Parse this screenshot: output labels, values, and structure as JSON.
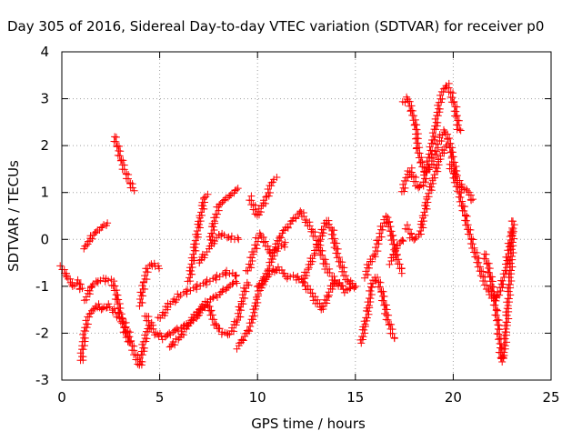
{
  "chart_data": {
    "type": "scatter",
    "title": "Day 305 of 2016, Sidereal Day-to-day VTEC variation (SDTVAR) for receiver p0",
    "xlabel": "GPS time / hours",
    "ylabel": "SDTVAR / TECUs",
    "xlim": [
      0,
      25
    ],
    "ylim": [
      -3,
      4
    ],
    "x_ticks": [
      "0",
      "5",
      "10",
      "15",
      "20",
      "25"
    ],
    "y_ticks": [
      "-3",
      "-2",
      "-1",
      "0",
      "1",
      "2",
      "3",
      "4"
    ],
    "grid": true,
    "marker": "+",
    "marker_color": "#ff0000",
    "tracks": [
      {
        "points": [
          [
            0.0,
            -0.6
          ],
          [
            0.3,
            -0.8
          ],
          [
            0.6,
            -1.0
          ],
          [
            0.9,
            -0.9
          ],
          [
            1.0,
            -1.1
          ]
        ]
      },
      {
        "points": [
          [
            1.0,
            -2.6
          ],
          [
            1.1,
            -2.2
          ],
          [
            1.2,
            -1.9
          ],
          [
            1.4,
            -1.6
          ],
          [
            1.6,
            -1.5
          ],
          [
            1.8,
            -1.4
          ],
          [
            2.0,
            -1.5
          ],
          [
            2.3,
            -1.4
          ],
          [
            2.6,
            -1.5
          ],
          [
            2.8,
            -1.6
          ],
          [
            3.0,
            -1.7
          ],
          [
            3.2,
            -1.8
          ],
          [
            3.4,
            -2.0
          ],
          [
            3.6,
            -2.3
          ],
          [
            3.8,
            -2.5
          ],
          [
            4.0,
            -2.7
          ],
          [
            4.2,
            -2.2
          ],
          [
            4.5,
            -1.8
          ]
        ]
      },
      {
        "points": [
          [
            1.2,
            -1.3
          ],
          [
            1.5,
            -1.0
          ],
          [
            1.8,
            -0.9
          ],
          [
            2.2,
            -0.85
          ],
          [
            2.6,
            -0.9
          ],
          [
            2.8,
            -1.2
          ],
          [
            3.0,
            -1.6
          ],
          [
            3.2,
            -1.9
          ],
          [
            3.4,
            -2.2
          ]
        ]
      },
      {
        "points": [
          [
            1.1,
            -0.2
          ],
          [
            1.3,
            -0.1
          ],
          [
            1.6,
            0.1
          ],
          [
            1.9,
            0.2
          ],
          [
            2.3,
            0.35
          ]
        ]
      },
      {
        "points": [
          [
            2.7,
            2.2
          ],
          [
            2.9,
            1.9
          ],
          [
            3.1,
            1.6
          ],
          [
            3.3,
            1.4
          ],
          [
            3.5,
            1.2
          ],
          [
            3.7,
            1.05
          ]
        ]
      },
      {
        "points": [
          [
            4.0,
            -1.4
          ],
          [
            4.2,
            -0.9
          ],
          [
            4.4,
            -0.6
          ],
          [
            4.6,
            -0.5
          ],
          [
            4.8,
            -0.55
          ],
          [
            5.0,
            -0.6
          ]
        ]
      },
      {
        "points": [
          [
            4.3,
            -1.6
          ],
          [
            4.5,
            -1.8
          ],
          [
            4.8,
            -2.0
          ],
          [
            5.2,
            -2.1
          ],
          [
            5.6,
            -2.0
          ],
          [
            6.0,
            -1.9
          ],
          [
            6.5,
            -1.8
          ],
          [
            7.0,
            -1.6
          ],
          [
            7.5,
            -1.3
          ],
          [
            8.0,
            -1.2
          ],
          [
            8.5,
            -1.0
          ],
          [
            9.0,
            -0.9
          ]
        ]
      },
      {
        "points": [
          [
            5.0,
            -1.7
          ],
          [
            5.5,
            -1.4
          ],
          [
            6.0,
            -1.2
          ],
          [
            6.5,
            -1.1
          ],
          [
            7.0,
            -1.0
          ],
          [
            7.5,
            -0.9
          ],
          [
            8.0,
            -0.8
          ],
          [
            8.5,
            -0.7
          ],
          [
            9.0,
            -0.8
          ]
        ]
      },
      {
        "points": [
          [
            5.5,
            -2.3
          ],
          [
            6.0,
            -2.1
          ],
          [
            6.5,
            -1.8
          ],
          [
            7.0,
            -1.5
          ],
          [
            7.5,
            -1.3
          ]
        ]
      },
      {
        "points": [
          [
            6.5,
            -0.9
          ],
          [
            6.7,
            -0.4
          ],
          [
            6.9,
            0.1
          ],
          [
            7.1,
            0.5
          ],
          [
            7.3,
            0.9
          ],
          [
            7.4,
            0.95
          ]
        ]
      },
      {
        "points": [
          [
            7.0,
            -0.5
          ],
          [
            7.5,
            -0.2
          ],
          [
            8.0,
            0.1
          ],
          [
            8.5,
            0.05
          ],
          [
            8.8,
            0.0
          ],
          [
            9.0,
            0.0
          ]
        ]
      },
      {
        "points": [
          [
            7.6,
            0.0
          ],
          [
            7.8,
            0.4
          ],
          [
            8.0,
            0.7
          ],
          [
            8.2,
            0.8
          ],
          [
            8.5,
            0.9
          ],
          [
            8.8,
            1.0
          ],
          [
            9.0,
            1.1
          ]
        ]
      },
      {
        "points": [
          [
            7.5,
            -1.4
          ],
          [
            7.8,
            -1.8
          ],
          [
            8.2,
            -2.0
          ],
          [
            8.6,
            -2.0
          ],
          [
            9.0,
            -1.7
          ],
          [
            9.2,
            -1.3
          ],
          [
            9.5,
            -0.9
          ]
        ]
      },
      {
        "points": [
          [
            9.0,
            -2.3
          ],
          [
            9.3,
            -2.1
          ],
          [
            9.6,
            -1.9
          ],
          [
            9.8,
            -1.6
          ],
          [
            10.0,
            -1.2
          ],
          [
            10.3,
            -0.9
          ],
          [
            10.6,
            -0.6
          ],
          [
            10.9,
            -0.2
          ],
          [
            11.2,
            0.1
          ],
          [
            11.6,
            0.3
          ],
          [
            12.0,
            0.5
          ],
          [
            12.2,
            0.6
          ],
          [
            12.5,
            0.4
          ],
          [
            12.8,
            0.2
          ],
          [
            13.2,
            -0.2
          ],
          [
            13.5,
            -0.6
          ],
          [
            14.0,
            -0.9
          ],
          [
            14.5,
            -1.1
          ],
          [
            15.0,
            -1.0
          ]
        ]
      },
      {
        "points": [
          [
            9.5,
            -0.7
          ],
          [
            9.8,
            -0.3
          ],
          [
            10.0,
            0.0
          ],
          [
            10.2,
            0.1
          ],
          [
            10.4,
            -0.1
          ],
          [
            10.7,
            -0.3
          ],
          [
            11.0,
            -0.2
          ],
          [
            11.5,
            -0.1
          ]
        ]
      },
      {
        "points": [
          [
            9.6,
            0.9
          ],
          [
            9.8,
            0.7
          ],
          [
            10.0,
            0.5
          ],
          [
            10.2,
            0.7
          ],
          [
            10.5,
            0.9
          ],
          [
            10.7,
            1.2
          ],
          [
            10.9,
            1.3
          ]
        ]
      },
      {
        "points": [
          [
            10.0,
            -1.0
          ],
          [
            10.5,
            -0.8
          ],
          [
            11.0,
            -0.6
          ],
          [
            11.5,
            -0.8
          ],
          [
            12.0,
            -0.8
          ],
          [
            12.5,
            -1.0
          ],
          [
            13.0,
            -1.3
          ],
          [
            13.3,
            -1.5
          ],
          [
            13.6,
            -1.2
          ],
          [
            13.9,
            -0.9
          ],
          [
            14.3,
            -1.0
          ]
        ]
      },
      {
        "points": [
          [
            12.3,
            -0.9
          ],
          [
            12.6,
            -0.6
          ],
          [
            12.9,
            -0.3
          ],
          [
            13.2,
            0.0
          ],
          [
            13.5,
            0.4
          ],
          [
            13.8,
            0.2
          ],
          [
            14.0,
            -0.2
          ],
          [
            14.3,
            -0.6
          ],
          [
            14.6,
            -0.9
          ],
          [
            15.0,
            -1.0
          ]
        ]
      },
      {
        "points": [
          [
            15.3,
            -2.2
          ],
          [
            15.5,
            -1.8
          ],
          [
            15.7,
            -1.4
          ],
          [
            15.8,
            -1.0
          ],
          [
            16.0,
            -0.8
          ],
          [
            16.2,
            -0.9
          ],
          [
            16.4,
            -1.2
          ],
          [
            16.6,
            -1.6
          ],
          [
            16.8,
            -1.9
          ],
          [
            17.0,
            -2.1
          ]
        ]
      },
      {
        "points": [
          [
            15.5,
            -0.8
          ],
          [
            15.8,
            -0.4
          ],
          [
            16.0,
            -0.3
          ],
          [
            16.2,
            0.0
          ],
          [
            16.4,
            0.3
          ],
          [
            16.6,
            0.5
          ],
          [
            16.8,
            0.2
          ],
          [
            17.0,
            -0.2
          ],
          [
            17.2,
            -0.5
          ],
          [
            17.4,
            -0.7
          ]
        ]
      },
      {
        "points": [
          [
            16.8,
            -0.5
          ],
          [
            17.0,
            -0.3
          ],
          [
            17.2,
            -0.1
          ],
          [
            17.5,
            0.0
          ]
        ]
      },
      {
        "points": [
          [
            17.5,
            2.9
          ],
          [
            17.7,
            3.0
          ],
          [
            17.9,
            2.7
          ],
          [
            18.1,
            2.4
          ],
          [
            18.2,
            1.9
          ],
          [
            18.4,
            1.6
          ],
          [
            18.6,
            1.4
          ],
          [
            18.8,
            1.5
          ],
          [
            19.0,
            1.7
          ],
          [
            19.2,
            2.0
          ],
          [
            19.4,
            2.2
          ],
          [
            19.6,
            2.3
          ],
          [
            19.8,
            2.1
          ],
          [
            20.0,
            1.7
          ],
          [
            20.2,
            1.3
          ],
          [
            20.5,
            1.1
          ],
          [
            20.8,
            1.0
          ],
          [
            21.0,
            0.8
          ]
        ]
      },
      {
        "points": [
          [
            17.4,
            1.0
          ],
          [
            17.6,
            1.3
          ],
          [
            17.8,
            1.5
          ],
          [
            18.0,
            1.3
          ],
          [
            18.2,
            1.1
          ],
          [
            18.5,
            1.2
          ],
          [
            18.8,
            1.8
          ],
          [
            19.1,
            2.4
          ],
          [
            19.3,
            2.9
          ],
          [
            19.5,
            3.2
          ],
          [
            19.7,
            3.3
          ],
          [
            19.9,
            3.1
          ],
          [
            20.1,
            2.8
          ],
          [
            20.3,
            2.3
          ]
        ]
      },
      {
        "points": [
          [
            17.6,
            0.3
          ],
          [
            17.8,
            0.1
          ],
          [
            18.0,
            0.0
          ],
          [
            18.3,
            0.1
          ],
          [
            18.5,
            0.5
          ],
          [
            18.7,
            0.9
          ],
          [
            19.0,
            1.3
          ],
          [
            19.3,
            1.7
          ],
          [
            19.6,
            2.0
          ]
        ]
      },
      {
        "points": [
          [
            19.8,
            1.6
          ],
          [
            20.0,
            1.4
          ],
          [
            20.3,
            1.0
          ],
          [
            20.6,
            0.5
          ],
          [
            20.9,
            0.0
          ],
          [
            21.2,
            -0.4
          ],
          [
            21.5,
            -0.8
          ],
          [
            21.8,
            -1.1
          ],
          [
            22.1,
            -1.3
          ],
          [
            22.4,
            -1.1
          ],
          [
            22.7,
            -0.6
          ],
          [
            23.0,
            0.2
          ]
        ]
      },
      {
        "points": [
          [
            21.6,
            -0.3
          ],
          [
            21.8,
            -0.6
          ],
          [
            22.0,
            -1.0
          ],
          [
            22.2,
            -1.5
          ],
          [
            22.3,
            -1.9
          ],
          [
            22.4,
            -2.3
          ],
          [
            22.5,
            -2.6
          ],
          [
            22.6,
            -2.4
          ],
          [
            22.7,
            -1.9
          ],
          [
            22.8,
            -1.4
          ],
          [
            22.9,
            -0.8
          ],
          [
            23.0,
            -0.2
          ],
          [
            23.05,
            0.4
          ]
        ]
      }
    ]
  }
}
